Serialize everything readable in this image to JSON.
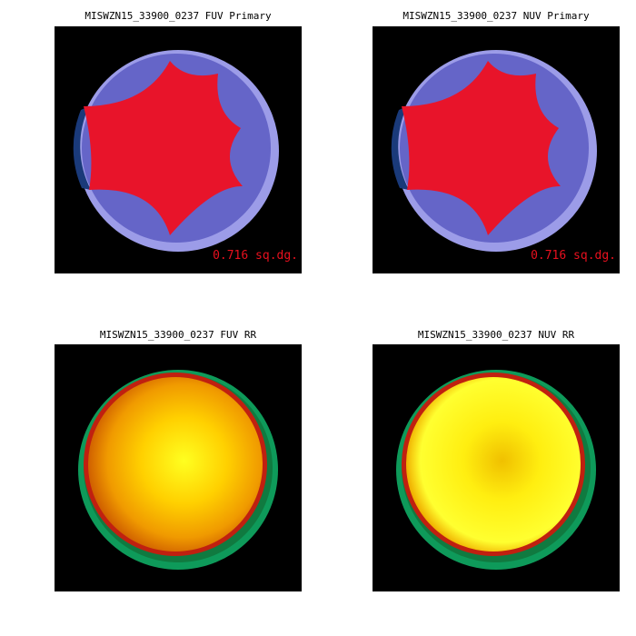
{
  "panels": [
    {
      "title": "MISWZN15_33900_0237 FUV Primary",
      "kind": "primary",
      "area_label": "0.716 sq.dg."
    },
    {
      "title": "MISWZN15_33900_0237 NUV Primary",
      "kind": "primary",
      "area_label": "0.716 sq.dg."
    },
    {
      "title": "MISWZN15_33900_0237 FUV RR",
      "kind": "rr"
    },
    {
      "title": "MISWZN15_33900_0237 NUV RR",
      "kind": "rr"
    }
  ],
  "colors": {
    "background": "#000000",
    "outer_ring": "#9c9ce8",
    "inner_disk": "#6565c8",
    "dark_edge": "#1a3a7a",
    "primary_region": "#e8142a",
    "rr_ring": "#0e9a5a",
    "rr_edge": "#c02010",
    "rr_mid": "#f0a000",
    "rr_center": "#ffff20",
    "area_text": "#e8101e"
  }
}
